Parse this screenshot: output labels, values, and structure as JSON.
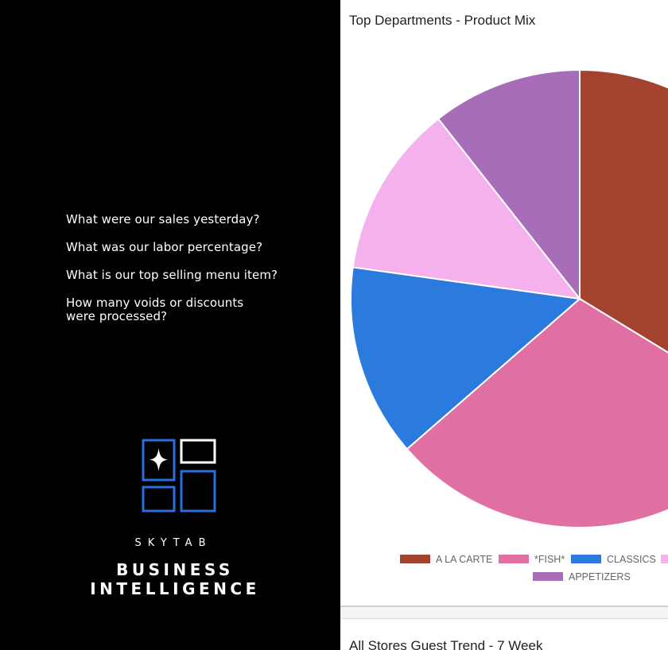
{
  "prompts": {
    "items": [
      "What were our sales yesterday?",
      "What was our labor percentage?",
      "What is our top selling menu item?",
      "How many voids or discounts were processed?"
    ]
  },
  "brand": {
    "name_small": "SKYTAB",
    "name_big_line1": "BUSINESS",
    "name_big_line2": "INTELLIGENCE",
    "logo_icon": "skytab-grid-sparkle-icon",
    "logo_color": "#2a6ddc"
  },
  "chart_data": {
    "type": "pie",
    "title": "Top Departments - Product Mix",
    "categories": [
      "A LA CARTE",
      "*FISH*",
      "CLASSICS",
      "",
      "APPETIZERS"
    ],
    "values": [
      33.7,
      29.9,
      13.6,
      12.2,
      10.6
    ],
    "colors": [
      "#a3422f",
      "#e070a4",
      "#2b7bde",
      "#f5b0ee",
      "#a86db9"
    ],
    "legend_position": "bottom"
  },
  "second_card": {
    "title": "All Stores Guest Trend - 7 Week"
  }
}
